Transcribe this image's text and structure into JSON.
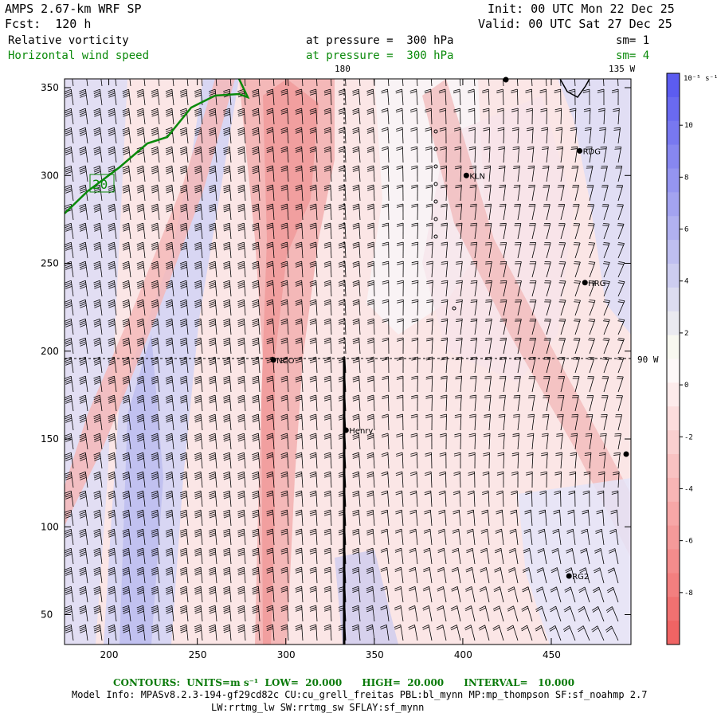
{
  "header": {
    "model": "AMPS 2.67-km WRF SP",
    "fcst": "Fcst:  120 h",
    "init": "Init: 00 UTC Mon 22 Dec 25",
    "valid": "Valid: 00 UTC Sat 27 Dec 25",
    "field1": "Relative vorticity",
    "field1_level": "at pressure =  300 hPa",
    "field1_sm": "sm= 1",
    "field2": "Horizontal wind speed",
    "field2_level": "at pressure =  300 hPa",
    "field2_sm": "sm= 4"
  },
  "map": {
    "x_ticks": [
      "200",
      "250",
      "300",
      "350",
      "400",
      "450"
    ],
    "y_ticks": [
      "350",
      "300",
      "250",
      "200",
      "150",
      "100",
      "50"
    ],
    "lon_labels": {
      "top_180": "180",
      "top_135w": "135 W",
      "right_90w": "90 W"
    },
    "contour_label": "20",
    "stations": [
      {
        "name": "NCO",
        "x": 293,
        "y": 195
      },
      {
        "name": "Henry",
        "x": 334,
        "y": 155
      },
      {
        "name": "KLN",
        "x": 402,
        "y": 300
      },
      {
        "name": "RDG",
        "x": 466,
        "y": 314
      },
      {
        "name": "HRG",
        "x": 469,
        "y": 239
      },
      {
        "name": "RG2",
        "x": 460,
        "y": 72
      }
    ],
    "x_range": [
      175,
      495
    ],
    "y_range": [
      33,
      355
    ]
  },
  "colorbar": {
    "unit": "10⁻⁵ s⁻¹",
    "ticks": [
      "10",
      "8",
      "6",
      "4",
      "2",
      "0",
      "-2",
      "-4",
      "-6",
      "-8"
    ],
    "colors": {
      "pos_dark": "#5c5cf0",
      "neg_dark": "#f06464",
      "zero": "#ffffff"
    }
  },
  "footer": {
    "contours": "CONTOURS:  UNITS=m s⁻¹  LOW=  20.000      HIGH=  20.000      INTERVAL=   10.000",
    "model_info": "Model Info: MPASv8.2.3-194-gf29cd82c CU:cu_grell_freitas PBL:bl_mynn MP:mp_thompson SF:sf_noahmp 2.7",
    "model_info2": "LW:rrtmg_lw SW:rrtmg_sw SFLAY:sf_mynn"
  }
}
